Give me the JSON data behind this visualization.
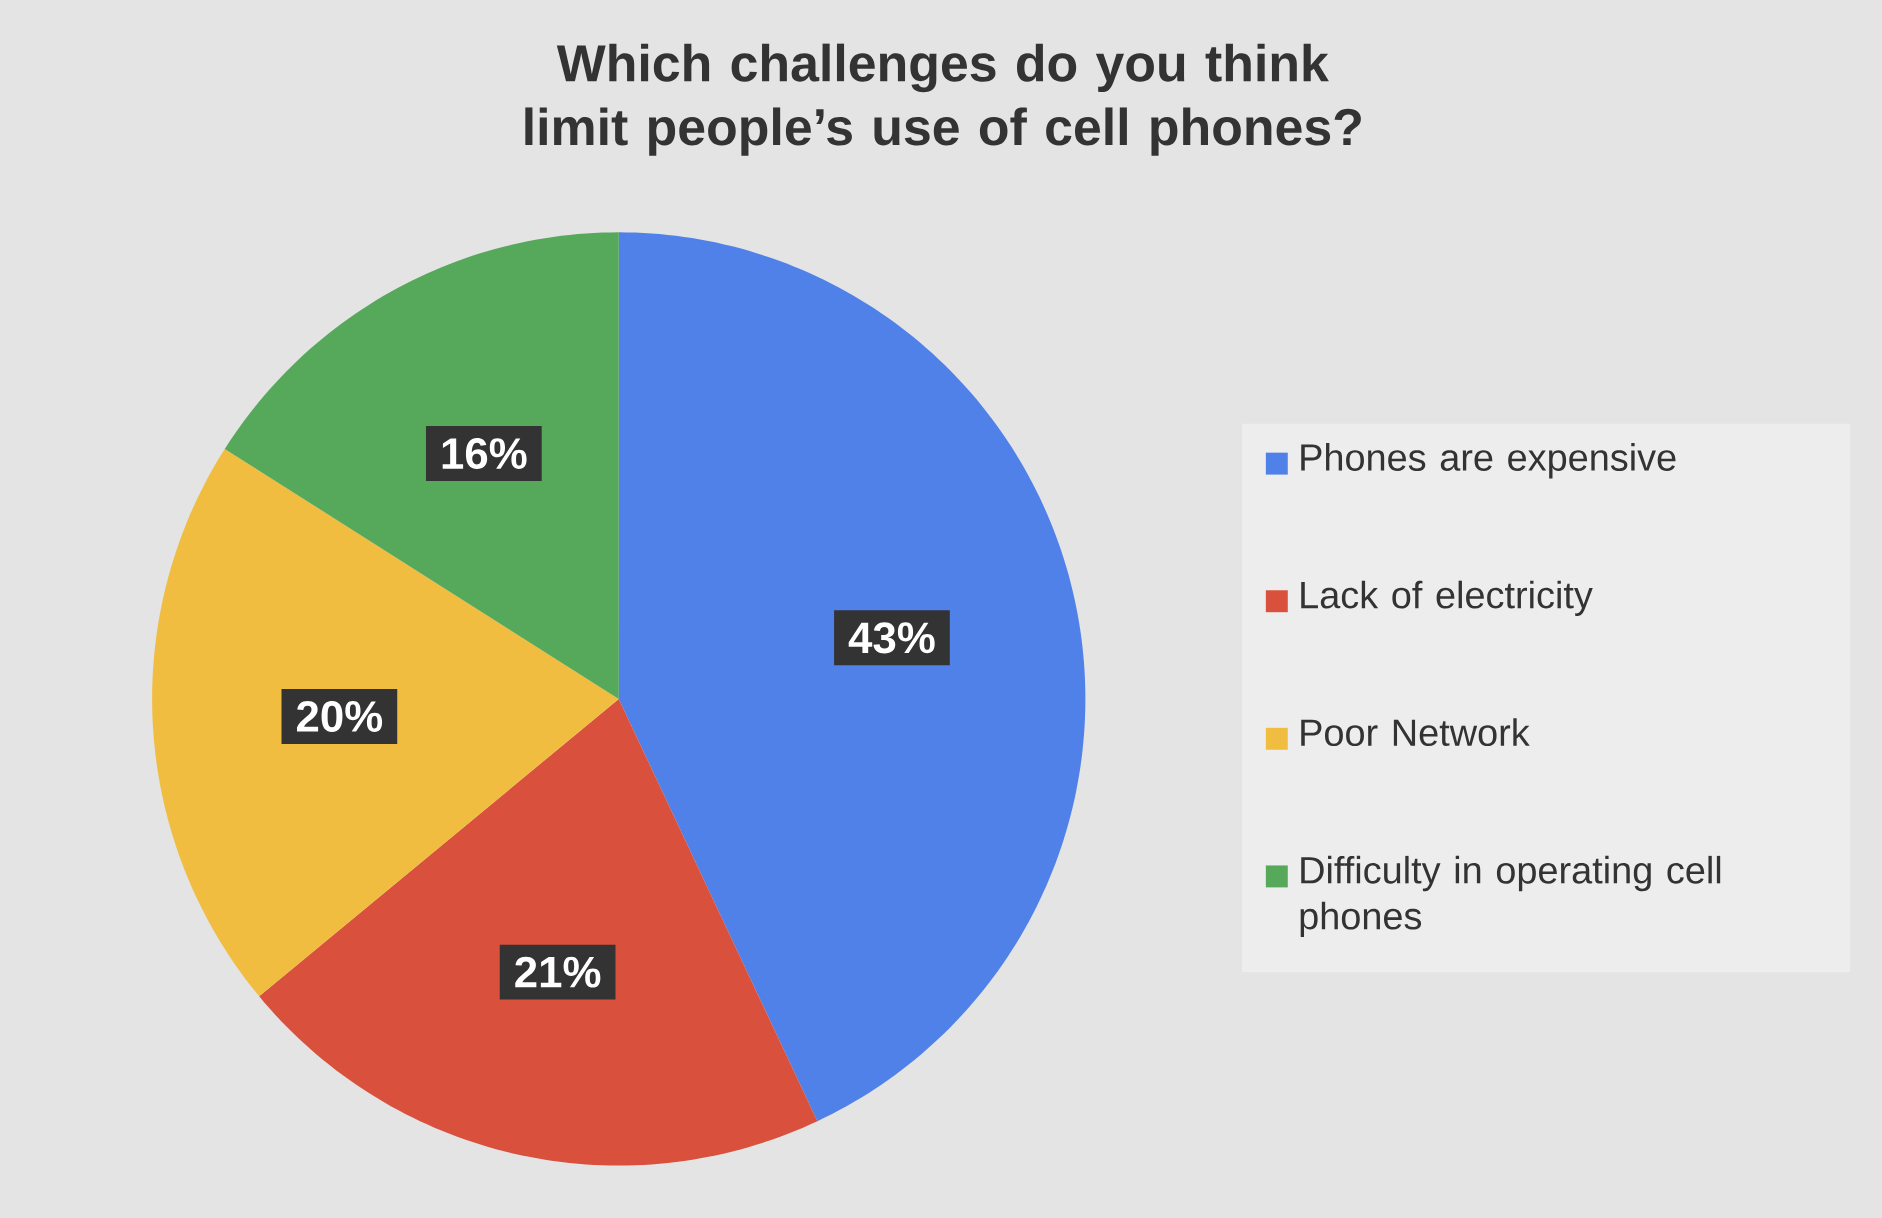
{
  "chart_data": {
    "type": "pie",
    "title": "Which challenges do you think limit people’s use of cell phones?",
    "categories": [
      "Phones are expensive",
      "Lack of electricity",
      "Poor Network",
      "Difficulty in operating cell phones"
    ],
    "values": [
      43,
      21,
      20,
      16
    ],
    "value_labels": [
      "43%",
      "21%",
      "20%",
      "16%"
    ],
    "colors": [
      "#4f81e8",
      "#d9503c",
      "#f0bd40",
      "#56a95a"
    ],
    "legend": "right"
  }
}
